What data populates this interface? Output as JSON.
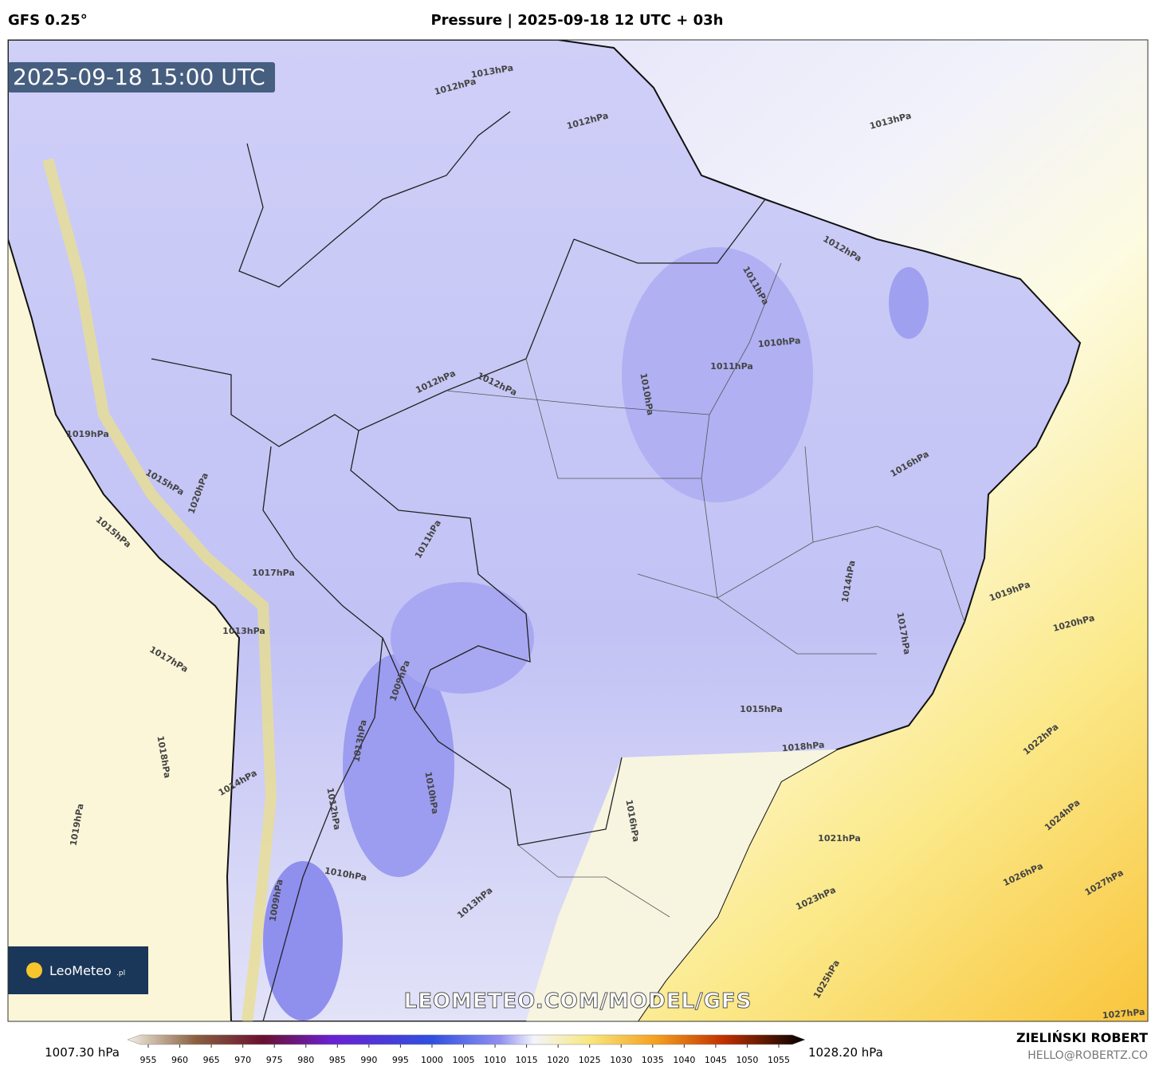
{
  "header": {
    "model": "GFS 0.25°",
    "title": "Pressure | 2025-09-18 12 UTC + 03h"
  },
  "map": {
    "timestamp": "2025-09-18 15:00 UTC",
    "watermark": "LEOMETEO.COM/MODEL/GFS",
    "logo": {
      "text": "LeoMeteo",
      "suffix": ".pl"
    },
    "contour_labels": [
      "1013hPa",
      "1012hPa",
      "1012hPa",
      "1013hPa",
      "1012hPa",
      "1011hPa",
      "1010hPa",
      "1011hPa",
      "1010hPa",
      "1012hPa",
      "1012hPa",
      "1019hPa",
      "1016hPa",
      "1015hPa",
      "1020hPa",
      "1011hPa",
      "1015hPa",
      "1017hPa",
      "1014hPa",
      "1019hPa",
      "1017hPa",
      "1020hPa",
      "1013hPa",
      "1017hPa",
      "1009hPa",
      "1015hPa",
      "1018hPa",
      "1022hPa",
      "1018hPa",
      "1013hPa",
      "1014hPa",
      "1010hPa",
      "1012hPa",
      "1024hPa",
      "1021hPa",
      "1016hPa",
      "1019hPa",
      "1010hPa",
      "1026hPa",
      "1027hPa",
      "1013hPa",
      "1023hPa",
      "1009hPa",
      "1025hPa",
      "1027hPa"
    ]
  },
  "colorbar": {
    "min_label": "1007.30 hPa",
    "max_label": "1028.20 hPa",
    "ticks": [
      "955",
      "960",
      "965",
      "970",
      "975",
      "980",
      "985",
      "990",
      "995",
      "1000",
      "1005",
      "1010",
      "1015",
      "1020",
      "1025",
      "1030",
      "1035",
      "1040",
      "1045",
      "1050",
      "1055"
    ]
  },
  "footer": {
    "author": "ZIELIŃSKI ROBERT",
    "email": "HELLO@ROBERTZ.CO"
  }
}
